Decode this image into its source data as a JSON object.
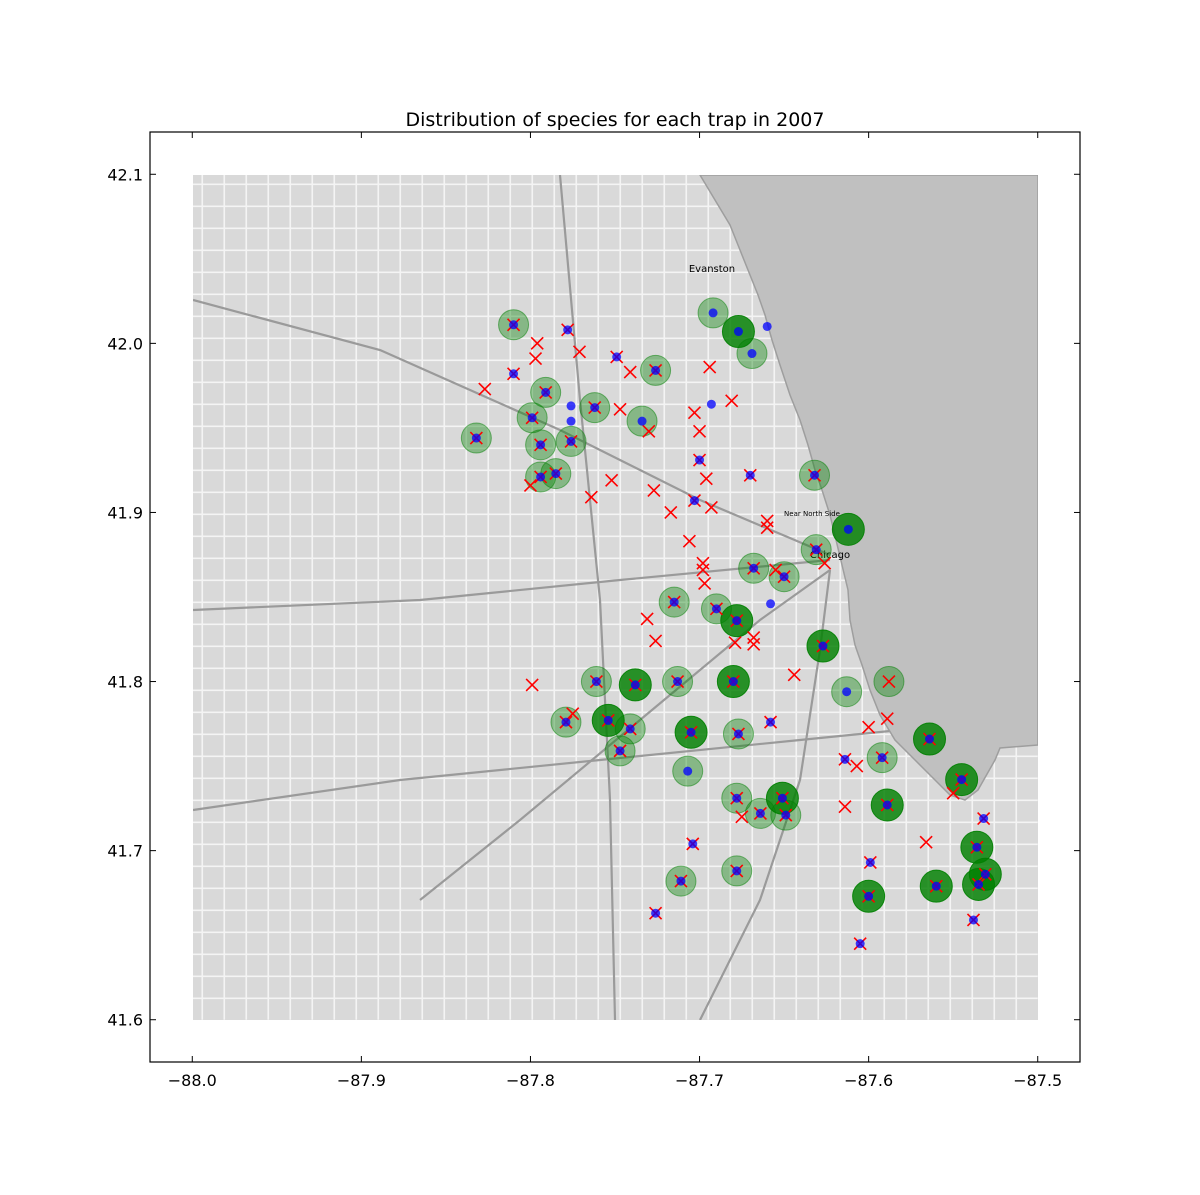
{
  "chart_data": {
    "type": "scatter",
    "title": "Distribution of species for each trap in 2007",
    "xlabel": "",
    "ylabel": "",
    "xlim": [
      -88.025,
      -87.475
    ],
    "ylim": [
      41.575,
      42.125
    ],
    "x_ticks": [
      -88.0,
      -87.9,
      -87.8,
      -87.7,
      -87.6,
      -87.5
    ],
    "x_tick_labels": [
      "−88.0",
      "−87.9",
      "−87.8",
      "−87.7",
      "−87.6",
      "−87.5"
    ],
    "y_ticks": [
      41.6,
      41.7,
      41.8,
      41.9,
      42.0,
      42.1
    ],
    "y_tick_labels": [
      "41.6",
      "41.7",
      "41.8",
      "41.9",
      "42.0",
      "42.1"
    ],
    "grid": false,
    "background": {
      "kind": "map",
      "extent": {
        "lon": [
          -88.0,
          -87.5
        ],
        "lat": [
          41.6,
          42.1
        ]
      },
      "water_color": "#c0c0c0",
      "land_color": "#d9d9d9",
      "road_color": "#ffffff",
      "place_labels": [
        "Evanston",
        "Chicago",
        "Near North Side"
      ]
    },
    "marker_styles": {
      "green_circle": "#008000",
      "red_cross": "#ff0000",
      "blue_dot": "#0000ff"
    },
    "series": [
      {
        "marker": "green-circle",
        "points": [
          [
            -87.81,
            42.011,
            1
          ],
          [
            -87.692,
            42.018,
            1
          ],
          [
            -87.677,
            42.007,
            2
          ],
          [
            -87.669,
            41.994,
            1
          ],
          [
            -87.726,
            41.984,
            1
          ],
          [
            -87.791,
            41.971,
            1
          ],
          [
            -87.762,
            41.962,
            1
          ],
          [
            -87.799,
            41.956,
            1
          ],
          [
            -87.734,
            41.954,
            1
          ],
          [
            -87.832,
            41.944,
            1
          ],
          [
            -87.794,
            41.94,
            1
          ],
          [
            -87.776,
            41.942,
            1
          ],
          [
            -87.794,
            41.921,
            1
          ],
          [
            -87.785,
            41.923,
            1
          ],
          [
            -87.632,
            41.922,
            1
          ],
          [
            -87.612,
            41.89,
            2
          ],
          [
            -87.631,
            41.878,
            1
          ],
          [
            -87.668,
            41.867,
            1
          ],
          [
            -87.65,
            41.862,
            1
          ],
          [
            -87.715,
            41.847,
            1
          ],
          [
            -87.69,
            41.843,
            1
          ],
          [
            -87.678,
            41.836,
            2
          ],
          [
            -87.627,
            41.821,
            2
          ],
          [
            -87.761,
            41.8,
            1
          ],
          [
            -87.738,
            41.798,
            2
          ],
          [
            -87.713,
            41.8,
            1
          ],
          [
            -87.68,
            41.8,
            2
          ],
          [
            -87.613,
            41.794,
            1
          ],
          [
            -87.588,
            41.8,
            1
          ],
          [
            -87.779,
            41.776,
            1
          ],
          [
            -87.754,
            41.777,
            2
          ],
          [
            -87.741,
            41.772,
            1
          ],
          [
            -87.705,
            41.77,
            2
          ],
          [
            -87.677,
            41.769,
            1
          ],
          [
            -87.564,
            41.766,
            2
          ],
          [
            -87.747,
            41.759,
            1
          ],
          [
            -87.592,
            41.755,
            1
          ],
          [
            -87.707,
            41.747,
            1
          ],
          [
            -87.545,
            41.742,
            2
          ],
          [
            -87.678,
            41.731,
            1
          ],
          [
            -87.651,
            41.731,
            2
          ],
          [
            -87.664,
            41.722,
            1
          ],
          [
            -87.649,
            41.721,
            1
          ],
          [
            -87.589,
            41.727,
            2
          ],
          [
            -87.536,
            41.702,
            2
          ],
          [
            -87.531,
            41.686,
            2
          ],
          [
            -87.535,
            41.68,
            2
          ],
          [
            -87.56,
            41.679,
            2
          ],
          [
            -87.6,
            41.673,
            2
          ],
          [
            -87.711,
            41.682,
            1
          ],
          [
            -87.678,
            41.688,
            1
          ]
        ]
      },
      {
        "marker": "red-cross",
        "points": [
          [
            -87.81,
            42.011
          ],
          [
            -87.778,
            42.008
          ],
          [
            -87.796,
            42.0
          ],
          [
            -87.771,
            41.995
          ],
          [
            -87.749,
            41.992
          ],
          [
            -87.797,
            41.991
          ],
          [
            -87.694,
            41.986
          ],
          [
            -87.81,
            41.982
          ],
          [
            -87.827,
            41.973
          ],
          [
            -87.791,
            41.971
          ],
          [
            -87.726,
            41.984
          ],
          [
            -87.741,
            41.983
          ],
          [
            -87.762,
            41.962
          ],
          [
            -87.747,
            41.961
          ],
          [
            -87.681,
            41.966
          ],
          [
            -87.73,
            41.948
          ],
          [
            -87.799,
            41.956
          ],
          [
            -87.832,
            41.944
          ],
          [
            -87.794,
            41.94
          ],
          [
            -87.776,
            41.942
          ],
          [
            -87.703,
            41.959
          ],
          [
            -87.7,
            41.948
          ],
          [
            -87.7,
            41.931
          ],
          [
            -87.696,
            41.92
          ],
          [
            -87.752,
            41.919
          ],
          [
            -87.794,
            41.921
          ],
          [
            -87.8,
            41.916
          ],
          [
            -87.785,
            41.923
          ],
          [
            -87.727,
            41.913
          ],
          [
            -87.703,
            41.907
          ],
          [
            -87.764,
            41.909
          ],
          [
            -87.67,
            41.922
          ],
          [
            -87.632,
            41.922
          ],
          [
            -87.693,
            41.903
          ],
          [
            -87.717,
            41.9
          ],
          [
            -87.66,
            41.895
          ],
          [
            -87.66,
            41.891
          ],
          [
            -87.706,
            41.883
          ],
          [
            -87.631,
            41.878
          ],
          [
            -87.698,
            41.87
          ],
          [
            -87.698,
            41.866
          ],
          [
            -87.697,
            41.858
          ],
          [
            -87.668,
            41.867
          ],
          [
            -87.655,
            41.866
          ],
          [
            -87.65,
            41.862
          ],
          [
            -87.626,
            41.87
          ],
          [
            -87.715,
            41.847
          ],
          [
            -87.69,
            41.843
          ],
          [
            -87.678,
            41.836
          ],
          [
            -87.731,
            41.837
          ],
          [
            -87.726,
            41.824
          ],
          [
            -87.668,
            41.826
          ],
          [
            -87.668,
            41.822
          ],
          [
            -87.679,
            41.823
          ],
          [
            -87.627,
            41.821
          ],
          [
            -87.761,
            41.8
          ],
          [
            -87.738,
            41.798
          ],
          [
            -87.713,
            41.8
          ],
          [
            -87.68,
            41.8
          ],
          [
            -87.644,
            41.804
          ],
          [
            -87.799,
            41.798
          ],
          [
            -87.588,
            41.8
          ],
          [
            -87.779,
            41.776
          ],
          [
            -87.775,
            41.781
          ],
          [
            -87.754,
            41.777
          ],
          [
            -87.741,
            41.772
          ],
          [
            -87.705,
            41.77
          ],
          [
            -87.677,
            41.769
          ],
          [
            -87.658,
            41.776
          ],
          [
            -87.6,
            41.773
          ],
          [
            -87.589,
            41.778
          ],
          [
            -87.747,
            41.759
          ],
          [
            -87.564,
            41.766
          ],
          [
            -87.614,
            41.754
          ],
          [
            -87.607,
            41.75
          ],
          [
            -87.592,
            41.755
          ],
          [
            -87.545,
            41.742
          ],
          [
            -87.55,
            41.734
          ],
          [
            -87.678,
            41.731
          ],
          [
            -87.651,
            41.731
          ],
          [
            -87.664,
            41.722
          ],
          [
            -87.675,
            41.72
          ],
          [
            -87.649,
            41.721
          ],
          [
            -87.614,
            41.726
          ],
          [
            -87.589,
            41.727
          ],
          [
            -87.532,
            41.719
          ],
          [
            -87.566,
            41.705
          ],
          [
            -87.536,
            41.702
          ],
          [
            -87.704,
            41.704
          ],
          [
            -87.599,
            41.693
          ],
          [
            -87.535,
            41.68
          ],
          [
            -87.531,
            41.686
          ],
          [
            -87.56,
            41.679
          ],
          [
            -87.6,
            41.673
          ],
          [
            -87.711,
            41.682
          ],
          [
            -87.678,
            41.688
          ],
          [
            -87.726,
            41.663
          ],
          [
            -87.538,
            41.659
          ],
          [
            -87.605,
            41.645
          ]
        ]
      },
      {
        "marker": "blue-dot",
        "points": [
          [
            -87.81,
            42.011
          ],
          [
            -87.66,
            42.01
          ],
          [
            -87.692,
            42.018
          ],
          [
            -87.677,
            42.007
          ],
          [
            -87.669,
            41.994
          ],
          [
            -87.778,
            42.008
          ],
          [
            -87.749,
            41.992
          ],
          [
            -87.726,
            41.984
          ],
          [
            -87.81,
            41.982
          ],
          [
            -87.791,
            41.971
          ],
          [
            -87.762,
            41.962
          ],
          [
            -87.776,
            41.963
          ],
          [
            -87.776,
            41.954
          ],
          [
            -87.734,
            41.954
          ],
          [
            -87.799,
            41.956
          ],
          [
            -87.693,
            41.964
          ],
          [
            -87.832,
            41.944
          ],
          [
            -87.794,
            41.94
          ],
          [
            -87.776,
            41.942
          ],
          [
            -87.7,
            41.931
          ],
          [
            -87.67,
            41.922
          ],
          [
            -87.632,
            41.922
          ],
          [
            -87.794,
            41.921
          ],
          [
            -87.785,
            41.923
          ],
          [
            -87.703,
            41.907
          ],
          [
            -87.612,
            41.89
          ],
          [
            -87.631,
            41.878
          ],
          [
            -87.668,
            41.867
          ],
          [
            -87.65,
            41.862
          ],
          [
            -87.658,
            41.846
          ],
          [
            -87.715,
            41.847
          ],
          [
            -87.69,
            41.843
          ],
          [
            -87.678,
            41.836
          ],
          [
            -87.627,
            41.821
          ],
          [
            -87.761,
            41.8
          ],
          [
            -87.738,
            41.798
          ],
          [
            -87.713,
            41.8
          ],
          [
            -87.68,
            41.8
          ],
          [
            -87.613,
            41.794
          ],
          [
            -87.779,
            41.776
          ],
          [
            -87.754,
            41.777
          ],
          [
            -87.741,
            41.772
          ],
          [
            -87.705,
            41.77
          ],
          [
            -87.677,
            41.769
          ],
          [
            -87.658,
            41.776
          ],
          [
            -87.564,
            41.766
          ],
          [
            -87.747,
            41.759
          ],
          [
            -87.707,
            41.747
          ],
          [
            -87.614,
            41.754
          ],
          [
            -87.592,
            41.755
          ],
          [
            -87.545,
            41.742
          ],
          [
            -87.678,
            41.731
          ],
          [
            -87.651,
            41.731
          ],
          [
            -87.664,
            41.722
          ],
          [
            -87.649,
            41.721
          ],
          [
            -87.589,
            41.727
          ],
          [
            -87.536,
            41.702
          ],
          [
            -87.531,
            41.686
          ],
          [
            -87.535,
            41.68
          ],
          [
            -87.56,
            41.679
          ],
          [
            -87.6,
            41.673
          ],
          [
            -87.711,
            41.682
          ],
          [
            -87.678,
            41.688
          ],
          [
            -87.599,
            41.693
          ],
          [
            -87.704,
            41.704
          ],
          [
            -87.532,
            41.719
          ],
          [
            -87.726,
            41.663
          ],
          [
            -87.538,
            41.659
          ],
          [
            -87.605,
            41.645
          ]
        ]
      }
    ]
  }
}
